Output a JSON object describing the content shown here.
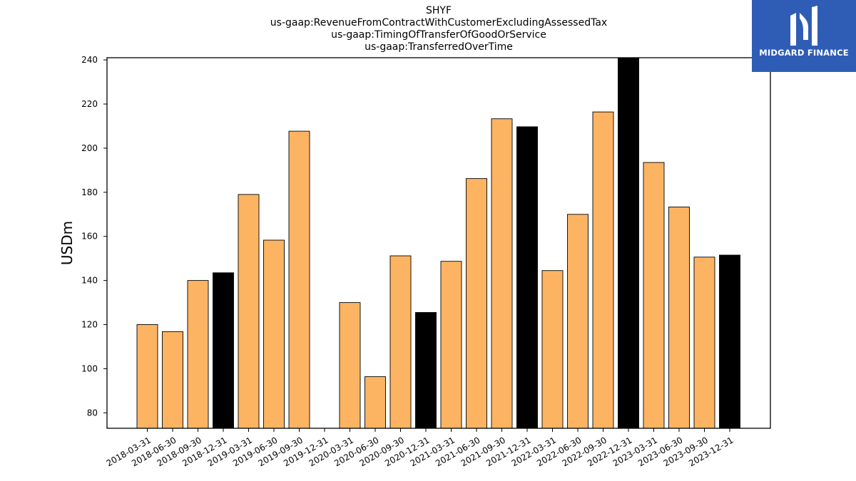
{
  "chart_data": {
    "type": "bar",
    "title_lines": [
      "SHYF",
      "us-gaap:RevenueFromContractWithCustomerExcludingAssessedTax",
      "us-gaap:TimingOfTransferOfGoodOrService",
      "us-gaap:TransferredOverTime"
    ],
    "ylabel": "USDm",
    "xlabel": "",
    "ylim": [
      73,
      241
    ],
    "yticks": [
      80,
      100,
      120,
      140,
      160,
      180,
      200,
      220,
      240
    ],
    "categories": [
      "2018-03-31",
      "2018-06-30",
      "2018-09-30",
      "2018-12-31",
      "2019-03-31",
      "2019-06-30",
      "2019-09-30",
      "2019-12-31",
      "2020-03-31",
      "2020-06-30",
      "2020-09-30",
      "2020-12-31",
      "2021-03-31",
      "2021-06-30",
      "2021-09-30",
      "2021-12-31",
      "2022-03-31",
      "2022-06-30",
      "2022-09-30",
      "2022-12-31",
      "2023-03-31",
      "2023-06-30",
      "2023-09-30",
      "2023-12-31"
    ],
    "values": [
      120,
      116.8,
      140,
      143.5,
      179,
      158.3,
      207.7,
      null,
      130,
      96.4,
      151.2,
      125.5,
      148.7,
      186.2,
      213.3,
      209.7,
      144.5,
      170,
      216.4,
      241,
      193.5,
      173.3,
      150.6,
      151.5
    ],
    "bar_colors": {
      "quarter": "#fdb462",
      "year_end": "#000000",
      "edge": "#000000"
    },
    "year_end_flags": [
      false,
      false,
      false,
      true,
      false,
      false,
      false,
      true,
      false,
      false,
      false,
      true,
      false,
      false,
      false,
      true,
      false,
      false,
      false,
      true,
      false,
      false,
      false,
      true
    ],
    "grid": false,
    "legend": "none"
  },
  "logo": {
    "text": "MIDGARD FINANCE",
    "background": "#2f5db6",
    "icon": "midgard-logo-icon"
  }
}
